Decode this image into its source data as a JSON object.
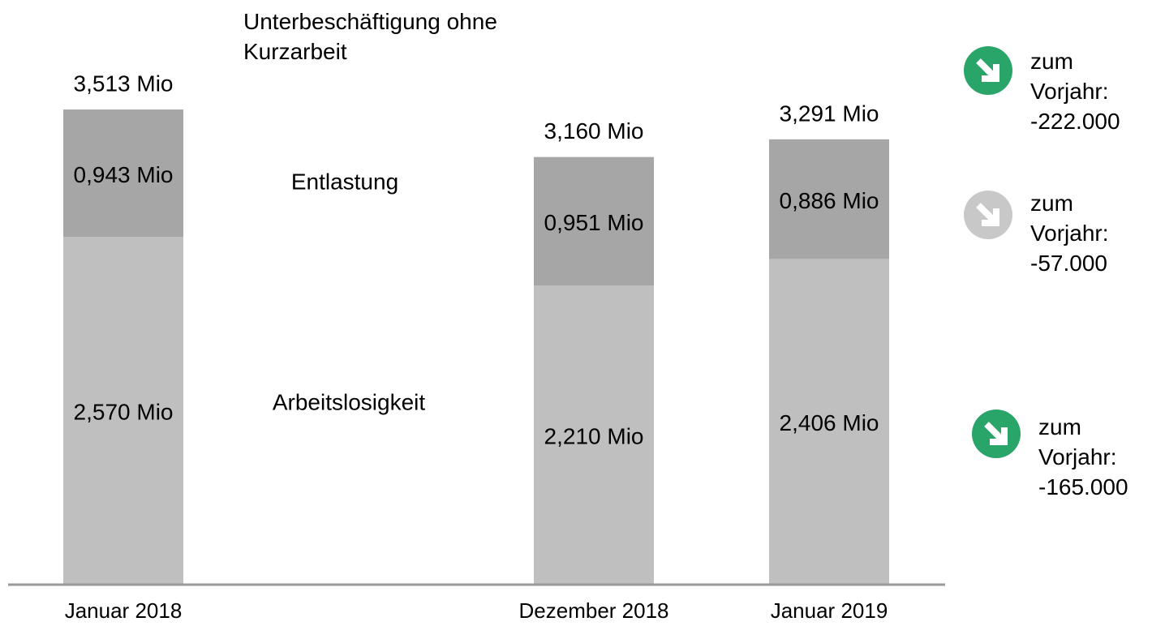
{
  "chart_data": {
    "type": "stacked-bar",
    "categories": [
      "Januar 2018",
      null,
      "Dezember 2018",
      "Januar 2019"
    ],
    "series": [
      {
        "name": "Arbeitslosigkeit",
        "color": "#bfbfbf",
        "values": [
          2.57,
          null,
          2.21,
          2.406
        ],
        "value_labels": [
          "2,570 Mio",
          null,
          "2,210 Mio",
          "2,406 Mio"
        ]
      },
      {
        "name": "Entlastung",
        "color": "#a6a6a6",
        "values": [
          0.943,
          null,
          0.951,
          0.886
        ],
        "value_labels": [
          "0,943 Mio",
          null,
          "0,951 Mio",
          "0,886 Mio"
        ]
      }
    ],
    "totals": {
      "name": "Unterbeschäftigung ohne Kurzarbeit",
      "values": [
        3.513,
        null,
        3.16,
        3.291
      ],
      "value_labels": [
        "3,513 Mio",
        null,
        "3,160 Mio",
        "3,291 Mio"
      ]
    },
    "ylim": [
      0,
      4.3
    ],
    "annotations": [
      {
        "text": "zum Vorjahr: -222.000",
        "color": "#2aa56a"
      },
      {
        "text": "zum Vorjahr: -57.000",
        "color": "#c8c8c8"
      },
      {
        "text": "zum Vorjahr: -165.000",
        "color": "#2aa56a"
      }
    ]
  }
}
